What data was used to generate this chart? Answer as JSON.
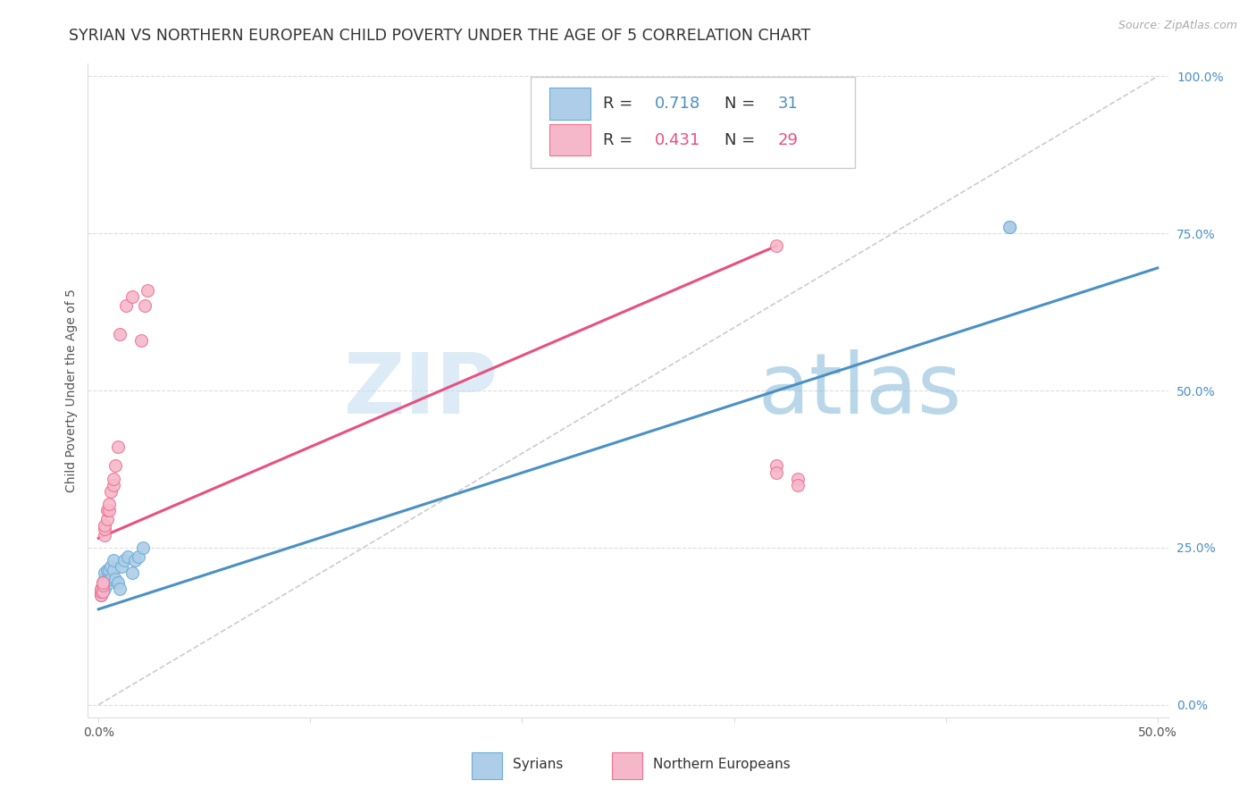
{
  "title": "SYRIAN VS NORTHERN EUROPEAN CHILD POVERTY UNDER THE AGE OF 5 CORRELATION CHART",
  "source": "Source: ZipAtlas.com",
  "ylabel": "Child Poverty Under the Age of 5",
  "x_ticks": [
    0.0,
    0.1,
    0.2,
    0.3,
    0.4,
    0.5
  ],
  "x_tick_labels": [
    "0.0%",
    "",
    "",
    "",
    "",
    "50.0%"
  ],
  "y_ticks": [
    0.0,
    0.25,
    0.5,
    0.75,
    1.0
  ],
  "y_tick_labels": [
    "0.0%",
    "25.0%",
    "50.0%",
    "75.0%",
    "100.0%"
  ],
  "xlim": [
    -0.005,
    0.505
  ],
  "ylim": [
    -0.02,
    1.02
  ],
  "legend_R": [
    "0.718",
    "0.431"
  ],
  "legend_N": [
    "31",
    "29"
  ],
  "blue_color": "#aecde8",
  "pink_color": "#f5b8cb",
  "blue_edge_color": "#6aadd5",
  "pink_edge_color": "#f07090",
  "blue_line_color": "#4a90c4",
  "pink_line_color": "#e85080",
  "ref_line_color": "#cccccc",
  "watermark": "ZIPatlas",
  "marker_size": 100,
  "title_fontsize": 12.5,
  "axis_label_fontsize": 10,
  "tick_fontsize": 10,
  "legend_fontsize": 13,
  "syrians_x": [
    0.001,
    0.001,
    0.002,
    0.002,
    0.002,
    0.002,
    0.003,
    0.003,
    0.003,
    0.003,
    0.004,
    0.004,
    0.005,
    0.005,
    0.005,
    0.006,
    0.006,
    0.007,
    0.007,
    0.008,
    0.009,
    0.01,
    0.011,
    0.012,
    0.014,
    0.016,
    0.017,
    0.019,
    0.021,
    0.43,
    0.43
  ],
  "syrians_y": [
    0.175,
    0.18,
    0.18,
    0.185,
    0.19,
    0.195,
    0.185,
    0.195,
    0.2,
    0.21,
    0.2,
    0.215,
    0.195,
    0.2,
    0.215,
    0.2,
    0.22,
    0.215,
    0.23,
    0.2,
    0.195,
    0.185,
    0.22,
    0.23,
    0.235,
    0.21,
    0.23,
    0.235,
    0.25,
    0.76,
    0.76
  ],
  "northern_x": [
    0.001,
    0.001,
    0.001,
    0.002,
    0.002,
    0.002,
    0.003,
    0.003,
    0.003,
    0.004,
    0.004,
    0.005,
    0.005,
    0.006,
    0.007,
    0.007,
    0.008,
    0.009,
    0.01,
    0.013,
    0.016,
    0.02,
    0.022,
    0.023,
    0.32,
    0.32,
    0.32,
    0.33,
    0.33
  ],
  "northern_y": [
    0.175,
    0.18,
    0.185,
    0.18,
    0.19,
    0.195,
    0.27,
    0.28,
    0.285,
    0.295,
    0.31,
    0.31,
    0.32,
    0.34,
    0.35,
    0.36,
    0.38,
    0.41,
    0.59,
    0.635,
    0.65,
    0.58,
    0.635,
    0.66,
    0.73,
    0.38,
    0.37,
    0.36,
    0.35
  ]
}
